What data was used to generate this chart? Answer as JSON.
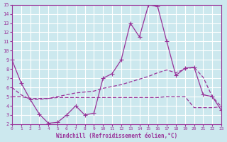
{
  "xlabel": "Windchill (Refroidissement éolien,°C)",
  "background_color": "#cce8ee",
  "grid_color": "#ffffff",
  "line_color": "#993399",
  "xlim": [
    0,
    23
  ],
  "ylim": [
    2,
    15
  ],
  "xticks": [
    0,
    1,
    2,
    3,
    4,
    5,
    6,
    7,
    8,
    9,
    10,
    11,
    12,
    13,
    14,
    15,
    16,
    17,
    18,
    19,
    20,
    21,
    22,
    23
  ],
  "yticks": [
    2,
    3,
    4,
    5,
    6,
    7,
    8,
    9,
    10,
    11,
    12,
    13,
    14,
    15
  ],
  "series1": [
    9.0,
    6.5,
    4.7,
    3.1,
    2.1,
    2.2,
    3.0,
    4.0,
    3.0,
    3.2,
    7.0,
    7.5,
    9.0,
    13.0,
    11.5,
    15.0,
    14.8,
    11.0,
    7.3,
    8.1,
    8.2,
    5.2,
    5.0,
    3.5
  ],
  "series2": [
    6.0,
    5.2,
    4.7,
    4.7,
    4.8,
    5.0,
    5.2,
    5.4,
    5.5,
    5.6,
    5.9,
    6.1,
    6.3,
    6.6,
    6.9,
    7.2,
    7.6,
    7.9,
    7.6,
    8.0,
    8.2,
    7.1,
    5.0,
    3.9
  ],
  "series3": [
    5.0,
    5.0,
    4.8,
    4.8,
    4.8,
    4.9,
    4.9,
    4.9,
    4.9,
    4.9,
    4.9,
    4.9,
    4.9,
    4.9,
    4.9,
    4.9,
    4.9,
    5.0,
    5.0,
    5.0,
    3.8,
    3.8,
    3.8,
    3.9
  ]
}
